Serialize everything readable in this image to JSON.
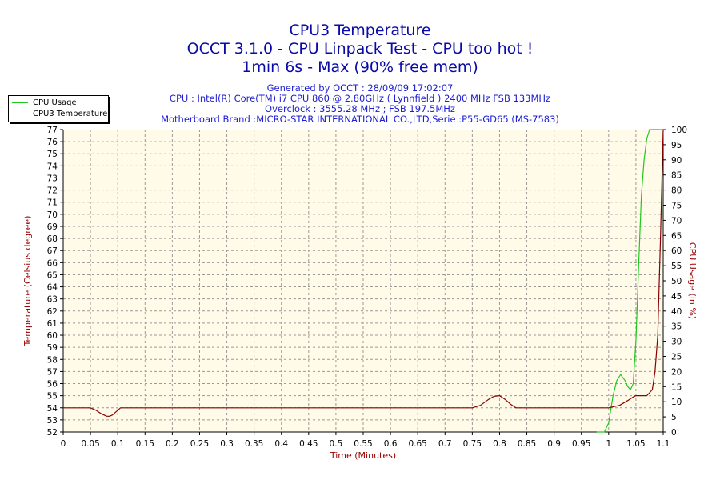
{
  "header": {
    "title": "CPU3 Temperature",
    "subtitle": "OCCT 3.1.0 - CPU Linpack Test - CPU too hot !",
    "run_info": "1min 6s - Max (90% free mem)",
    "info_lines": [
      "Generated by OCCT : 28/09/09 17:02:07",
      "CPU : Intel(R) Core(TM) i7 CPU 860 @ 2.80GHz ( Lynnfield ) 2400 MHz FSB 133MHz",
      "Overclock : 3555.28 MHz ; FSB 197.5MHz",
      "Motherboard Brand :MICRO-STAR INTERNATIONAL CO.,LTD,Serie :P55-GD65 (MS-7583)"
    ]
  },
  "colors": {
    "title": "#0a0aa8",
    "info": "#1d1dd2",
    "plot_background": "#fffbe8",
    "grid": "#999999",
    "usage_series": "#1fc81f",
    "temp_series": "#8b0000",
    "axis_label_red": "#990000"
  },
  "chart_data": {
    "type": "line",
    "xlabel": "Time (Minutes)",
    "ylabel_left": "Temperature (Celsius degree)",
    "ylabel_right": "CPU Usage (in %)",
    "xlim": [
      0,
      1.1
    ],
    "ylim_left": [
      52,
      77
    ],
    "ylim_right": [
      0,
      100
    ],
    "grid": true,
    "legend_position": "top-left",
    "x_ticks": [
      "0",
      "0.05",
      "0.1",
      "0.15",
      "0.2",
      "0.25",
      "0.3",
      "0.35",
      "0.4",
      "0.45",
      "0.5",
      "0.55",
      "0.6",
      "0.65",
      "0.7",
      "0.75",
      "0.8",
      "0.85",
      "0.9",
      "0.95",
      "1",
      "1.05",
      "1.1"
    ],
    "y_left_ticks": [
      "52",
      "53",
      "54",
      "55",
      "56",
      "57",
      "58",
      "59",
      "60",
      "61",
      "62",
      "63",
      "64",
      "65",
      "66",
      "67",
      "68",
      "69",
      "70",
      "71",
      "72",
      "73",
      "74",
      "75",
      "76",
      "77"
    ],
    "y_right_ticks": [
      "0",
      "5",
      "10",
      "15",
      "20",
      "25",
      "30",
      "35",
      "40",
      "45",
      "50",
      "55",
      "60",
      "65",
      "70",
      "75",
      "80",
      "85",
      "90",
      "95",
      "100"
    ],
    "series": [
      {
        "name": "CPU Usage",
        "axis": "right",
        "x": [
          0.978,
          0.985,
          0.992,
          1.0,
          1.008,
          1.015,
          1.022,
          1.03,
          1.035,
          1.04,
          1.045,
          1.05,
          1.055,
          1.06,
          1.065,
          1.07,
          1.075,
          1.082,
          1.09,
          1.1
        ],
        "y": [
          0,
          0,
          0,
          3,
          12,
          17,
          19,
          17,
          15,
          14,
          16,
          30,
          55,
          78,
          90,
          97,
          100,
          100,
          100,
          100
        ]
      },
      {
        "name": "CPU3 Temperature",
        "axis": "left",
        "x": [
          0,
          0.05,
          0.06,
          0.07,
          0.08,
          0.085,
          0.09,
          0.1,
          0.105,
          0.11,
          0.2,
          0.3,
          0.4,
          0.5,
          0.6,
          0.7,
          0.75,
          0.765,
          0.78,
          0.79,
          0.8,
          0.81,
          0.82,
          0.83,
          0.84,
          0.9,
          0.95,
          1.0,
          1.02,
          1.035,
          1.045,
          1.05,
          1.06,
          1.07,
          1.08,
          1.085,
          1.09,
          1.095,
          1.1
        ],
        "y": [
          54,
          54,
          53.8,
          53.5,
          53.3,
          53.3,
          53.4,
          53.8,
          54,
          54,
          54,
          54,
          54,
          54,
          54,
          54,
          54,
          54.2,
          54.7,
          54.95,
          55,
          54.7,
          54.3,
          54,
          54,
          54,
          54,
          54,
          54.2,
          54.6,
          54.9,
          55,
          55,
          55,
          55.5,
          57,
          60,
          68,
          77
        ]
      }
    ]
  }
}
